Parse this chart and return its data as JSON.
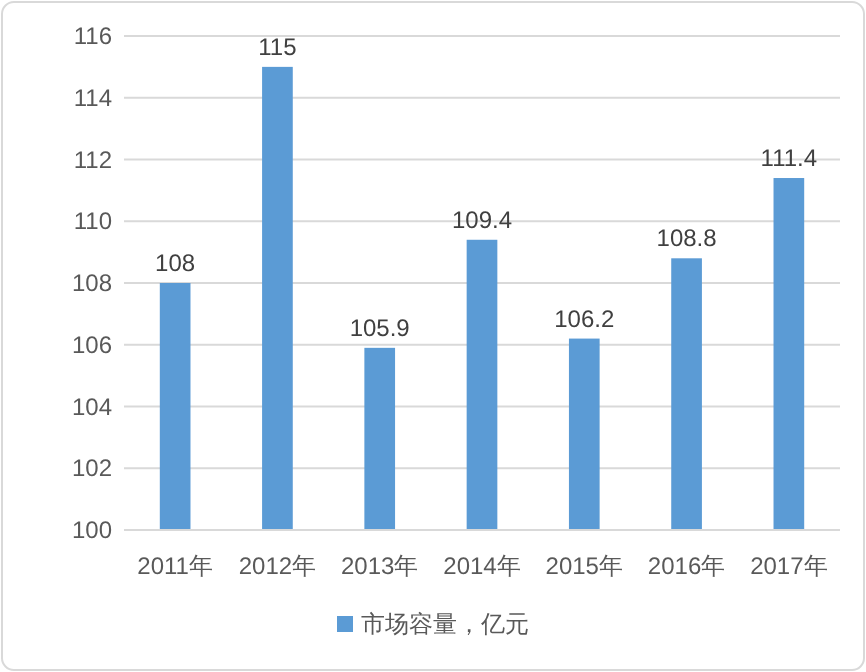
{
  "chart_data": {
    "type": "bar",
    "categories": [
      "2011年",
      "2012年",
      "2013年",
      "2014年",
      "2015年",
      "2016年",
      "2017年"
    ],
    "series": [
      {
        "name": "市场容量，亿元",
        "color": "#5b9bd5",
        "values": [
          108,
          115,
          105.9,
          109.4,
          106.2,
          108.8,
          111.4
        ]
      }
    ],
    "ylim": [
      100,
      116
    ],
    "yticks": [
      100,
      102,
      104,
      106,
      108,
      110,
      112,
      114,
      116
    ],
    "grid": "y",
    "data_labels": true,
    "legend": "bottom"
  }
}
